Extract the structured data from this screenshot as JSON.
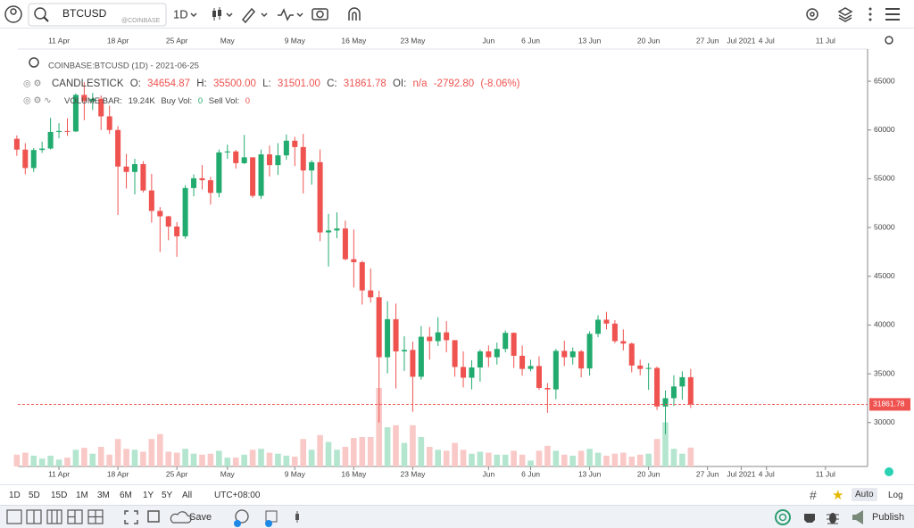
{
  "header": {
    "symbol": "BTCUSD",
    "exchange": "@COINBASE",
    "interval": "1D"
  },
  "legend": {
    "title": "COINBASE:BTCUSD (1D) - 2021-06-25",
    "series_name": "CANDLESTICK",
    "o_label": "O:",
    "open": "34654.87",
    "h_label": "H:",
    "high": "35500.00",
    "l_label": "L:",
    "low": "31501.00",
    "c_label": "C:",
    "close": "31861.78",
    "oi_label": "OI:",
    "oi": "n/a",
    "change": "-2792.80",
    "change_pct": "(-8.06%)",
    "vol_name": "VOLUME BAR:",
    "vol": "19.24K",
    "buy_label": "Buy Vol:",
    "buy": "0",
    "sell_label": "Sell Vol:",
    "sell": "0"
  },
  "ranges": [
    "1D",
    "5D",
    "15D",
    "1M",
    "3M",
    "6M",
    "1Y",
    "5Y",
    "All"
  ],
  "timezone": "UTC+08:00",
  "scale_modes": [
    "Auto",
    "Log"
  ],
  "save": "Save",
  "publish": "Publish",
  "chart_data": {
    "type": "candlestick",
    "up_color": "#22ab6e",
    "down_color": "#ef5350",
    "vol_up_color": "#b4e5cf",
    "vol_down_color": "#f9c9c7",
    "x": [
      "2021-04-06",
      "2021-04-07",
      "2021-04-08",
      "2021-04-09",
      "2021-04-10",
      "2021-04-11",
      "2021-04-12",
      "2021-04-13",
      "2021-04-14",
      "2021-04-15",
      "2021-04-16",
      "2021-04-17",
      "2021-04-18",
      "2021-04-19",
      "2021-04-20",
      "2021-04-21",
      "2021-04-22",
      "2021-04-23",
      "2021-04-24",
      "2021-04-25",
      "2021-04-26",
      "2021-04-27",
      "2021-04-28",
      "2021-04-29",
      "2021-04-30",
      "2021-05-01",
      "2021-05-02",
      "2021-05-03",
      "2021-05-04",
      "2021-05-05",
      "2021-05-06",
      "2021-05-07",
      "2021-05-08",
      "2021-05-09",
      "2021-05-10",
      "2021-05-11",
      "2021-05-12",
      "2021-05-13",
      "2021-05-14",
      "2021-05-15",
      "2021-05-16",
      "2021-05-17",
      "2021-05-18",
      "2021-05-19",
      "2021-05-20",
      "2021-05-21",
      "2021-05-22",
      "2021-05-23",
      "2021-05-24",
      "2021-05-25",
      "2021-05-26",
      "2021-05-27",
      "2021-05-28",
      "2021-05-29",
      "2021-05-30",
      "2021-05-31",
      "2021-06-01",
      "2021-06-02",
      "2021-06-03",
      "2021-06-04",
      "2021-06-05",
      "2021-06-06",
      "2021-06-07",
      "2021-06-08",
      "2021-06-09",
      "2021-06-10",
      "2021-06-11",
      "2021-06-12",
      "2021-06-13",
      "2021-06-14",
      "2021-06-15",
      "2021-06-16",
      "2021-06-17",
      "2021-06-18",
      "2021-06-19",
      "2021-06-20",
      "2021-06-21",
      "2021-06-22",
      "2021-06-23",
      "2021-06-24",
      "2021-06-25"
    ],
    "open": [
      59100,
      57990,
      56100,
      57950,
      58100,
      59800,
      59900,
      59850,
      63600,
      62950,
      63200,
      61400,
      60000,
      56250,
      55700,
      56500,
      53800,
      51700,
      51150,
      50100,
      49100,
      54050,
      55050,
      54850,
      53550,
      57700,
      57800,
      56600,
      57200,
      53250,
      57500,
      56400,
      57400,
      58900,
      58250,
      55850,
      56700,
      49500,
      49700,
      49900,
      46750,
      46450,
      43550,
      42850,
      36700,
      40600,
      37300,
      37450,
      34700,
      38800,
      38350,
      39250,
      38450,
      35700,
      34600,
      35650,
      37300,
      36700,
      37550,
      39200,
      36850,
      35500,
      35800,
      33550,
      33400,
      37350,
      36700,
      37300,
      35550,
      39100,
      40550,
      40150,
      38350,
      38100,
      35850,
      35500,
      35600,
      31650,
      32500,
      33700,
      34654.87
    ],
    "high": [
      59450,
      58650,
      58150,
      58800,
      61250,
      60700,
      61200,
      63750,
      64900,
      63800,
      63550,
      62500,
      60400,
      57550,
      57050,
      56800,
      55500,
      52100,
      51200,
      50550,
      54350,
      55450,
      56400,
      55200,
      58000,
      58500,
      57950,
      59500,
      57200,
      58000,
      58400,
      58650,
      59550,
      59300,
      59600,
      56900,
      58000,
      51400,
      51550,
      50700,
      49800,
      46600,
      45800,
      43500,
      42450,
      42200,
      38850,
      38300,
      39900,
      39800,
      40800,
      40400,
      38450,
      37300,
      36400,
      37500,
      37900,
      38200,
      39450,
      39250,
      37900,
      36450,
      36800,
      34050,
      37550,
      38400,
      37700,
      37450,
      39350,
      41000,
      41350,
      40500,
      39550,
      38200,
      36450,
      36100,
      35750,
      33300,
      34850,
      35250,
      35500
    ],
    "low": [
      57350,
      55450,
      55700,
      57650,
      58000,
      59150,
      59400,
      59800,
      61000,
      62050,
      60000,
      59600,
      51300,
      54000,
      53400,
      53600,
      50500,
      47500,
      48700,
      47000,
      48850,
      53200,
      53900,
      52350,
      53100,
      57050,
      56050,
      56500,
      53050,
      52950,
      55250,
      55400,
      56950,
      56300,
      53500,
      54400,
      48600,
      46000,
      48900,
      46650,
      43850,
      42100,
      42300,
      30000,
      35050,
      33500,
      35300,
      31100,
      34400,
      36450,
      37850,
      37200,
      34700,
      33600,
      33400,
      34200,
      35700,
      35950,
      37200,
      35600,
      34800,
      35250,
      33350,
      31000,
      32400,
      35800,
      35950,
      34650,
      34800,
      38750,
      39550,
      38150,
      37400,
      35150,
      34850,
      33350,
      31300,
      28800,
      31700,
      32350,
      31501
    ],
    "close": [
      57990,
      56100,
      57950,
      58100,
      59800,
      59900,
      59850,
      63600,
      62950,
      63200,
      61400,
      60000,
      56250,
      55700,
      56500,
      53800,
      51700,
      51150,
      50100,
      49100,
      54050,
      55050,
      54850,
      53550,
      57700,
      57800,
      56600,
      57200,
      53250,
      57500,
      56400,
      57400,
      58900,
      58250,
      55850,
      56700,
      49500,
      49700,
      49900,
      46750,
      46450,
      43550,
      42850,
      36700,
      40600,
      37300,
      37450,
      34700,
      38800,
      38350,
      39250,
      38450,
      35700,
      34600,
      35650,
      37300,
      36700,
      37550,
      39200,
      36850,
      35500,
      35800,
      33550,
      33400,
      37350,
      36700,
      37300,
      35550,
      39100,
      40550,
      40150,
      38350,
      38100,
      35850,
      35500,
      35600,
      31650,
      32500,
      33700,
      34650,
      31861.78
    ],
    "volume": [
      12,
      14,
      11,
      8,
      11,
      7,
      9,
      17,
      19,
      13,
      20,
      12,
      28,
      18,
      17,
      15,
      28,
      33,
      15,
      14,
      18,
      13,
      12,
      13,
      16,
      9,
      9,
      12,
      17,
      18,
      14,
      13,
      11,
      10,
      28,
      17,
      32,
      25,
      17,
      20,
      29,
      30,
      30,
      80,
      40,
      42,
      24,
      42,
      30,
      20,
      17,
      16,
      24,
      17,
      13,
      15,
      14,
      12,
      12,
      16,
      12,
      6,
      16,
      21,
      16,
      12,
      11,
      16,
      18,
      14,
      11,
      13,
      14,
      10,
      12,
      13,
      28,
      45,
      18,
      13,
      19.24
    ],
    "xlim": [
      "2021-04-04",
      "2021-07-16"
    ],
    "xticks": [
      {
        "value": "2021-04-11",
        "label": "11 Apr"
      },
      {
        "value": "2021-04-18",
        "label": "18 Apr"
      },
      {
        "value": "2021-04-25",
        "label": "25 Apr"
      },
      {
        "value": "2021-05-01",
        "label": "May"
      },
      {
        "value": "2021-05-09",
        "label": "9 May"
      },
      {
        "value": "2021-05-16",
        "label": "16 May"
      },
      {
        "value": "2021-05-23",
        "label": "23 May"
      },
      {
        "value": "2021-06-01",
        "label": "Jun"
      },
      {
        "value": "2021-06-06",
        "label": "6 Jun"
      },
      {
        "value": "2021-06-13",
        "label": "13 Jun"
      },
      {
        "value": "2021-06-20",
        "label": "20 Jun"
      },
      {
        "value": "2021-06-27",
        "label": "27 Jun"
      },
      {
        "value": "2021-07-01",
        "label": "Jul 2021"
      },
      {
        "value": "2021-07-04",
        "label": "4 Jul"
      },
      {
        "value": "2021-07-11",
        "label": "11 Jul"
      }
    ],
    "ylim": [
      25500,
      68300
    ],
    "yticks": [
      30000,
      35000,
      40000,
      45000,
      50000,
      55000,
      60000,
      65000
    ]
  }
}
